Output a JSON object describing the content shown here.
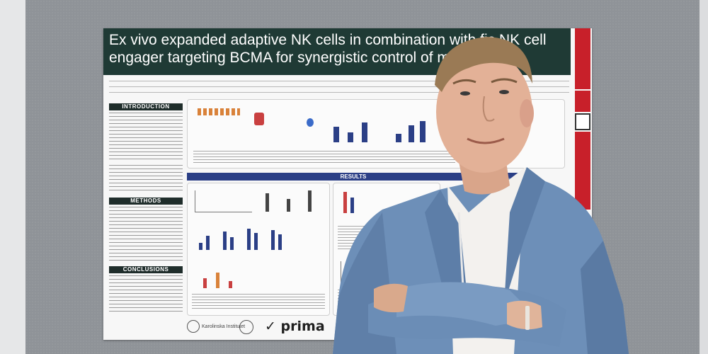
{
  "poster": {
    "title_line1": "Ex vivo expanded adaptive NK cells in combination with",
    "title_line1_tail": "fic NK cell",
    "title_line2": "engager targeting BCMA for synergistic control of multiple",
    "sections": {
      "introduction": "INTRODUCTION",
      "methods": "METHODS",
      "conclusions": "CONCLUSIONS",
      "results": "RESULTS"
    },
    "logos": {
      "institution": "Karolinska Institutet",
      "company": "prima"
    }
  },
  "colors": {
    "poster_header": "#1f3a35",
    "results_bar": "#2b3f86",
    "badge_red": "#c8202a",
    "jacket_blue": "#6d8fb8",
    "board_gray": "#8f9398"
  }
}
